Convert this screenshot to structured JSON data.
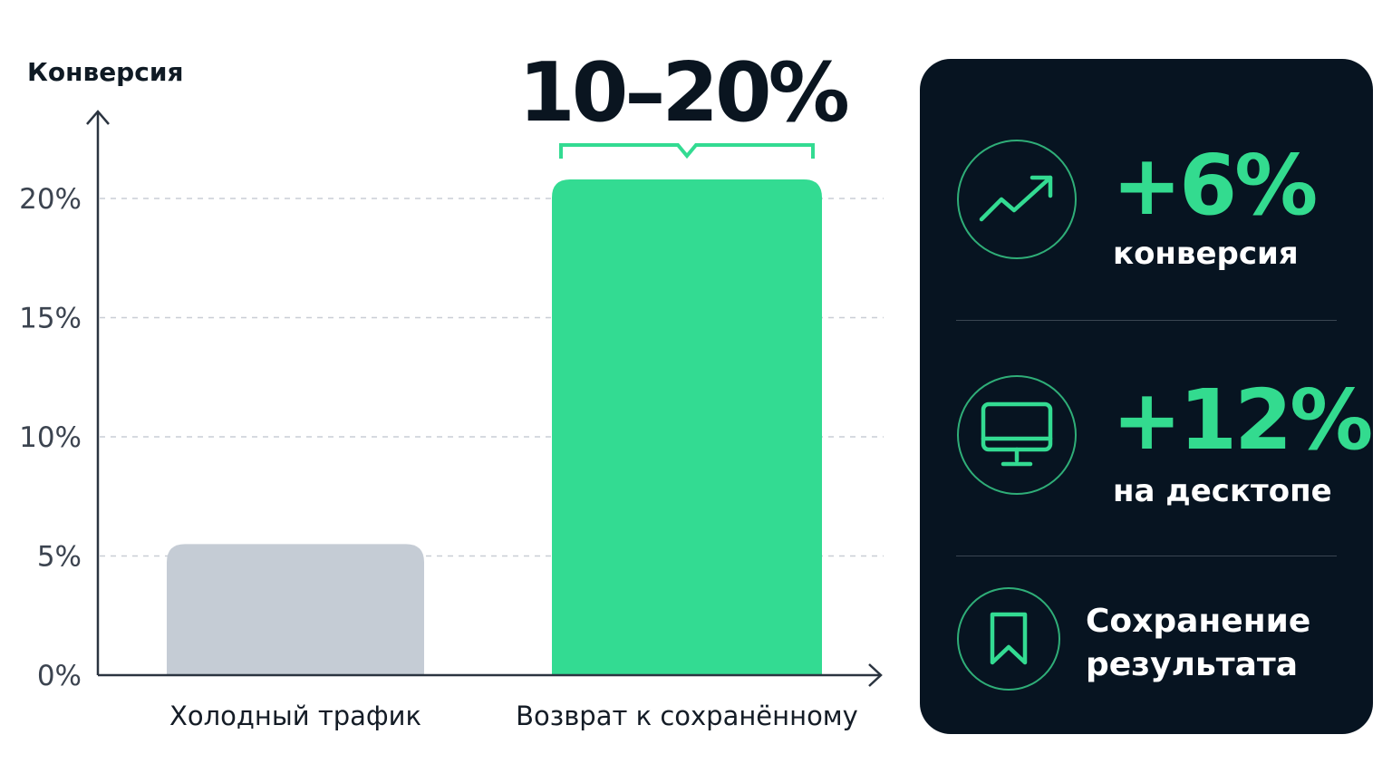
{
  "chart_data": {
    "type": "bar",
    "ylabel": "Конверсия",
    "categories": [
      "Холодный трафик",
      "Возврат к сохранённому"
    ],
    "values": [
      5.5,
      20.8
    ],
    "ylim": [
      0,
      20
    ],
    "yticks": [
      "0%",
      "5%",
      "10%",
      "15%",
      "20%"
    ],
    "grid": true,
    "colors": [
      "#c5ccd5",
      "#33db92"
    ],
    "annotation": "10–20%"
  },
  "panel": {
    "stats": [
      {
        "icon": "trend-up-icon",
        "value": "+6%",
        "label": "конверсия"
      },
      {
        "icon": "monitor-icon",
        "value": "+12%",
        "label": "на десктопе"
      },
      {
        "icon": "bookmark-icon",
        "title_line1": "Сохранение",
        "title_line2": "результата"
      }
    ]
  },
  "colors": {
    "accent": "#33db92",
    "panel_bg": "#071421",
    "cold_bar": "#c5ccd5"
  }
}
